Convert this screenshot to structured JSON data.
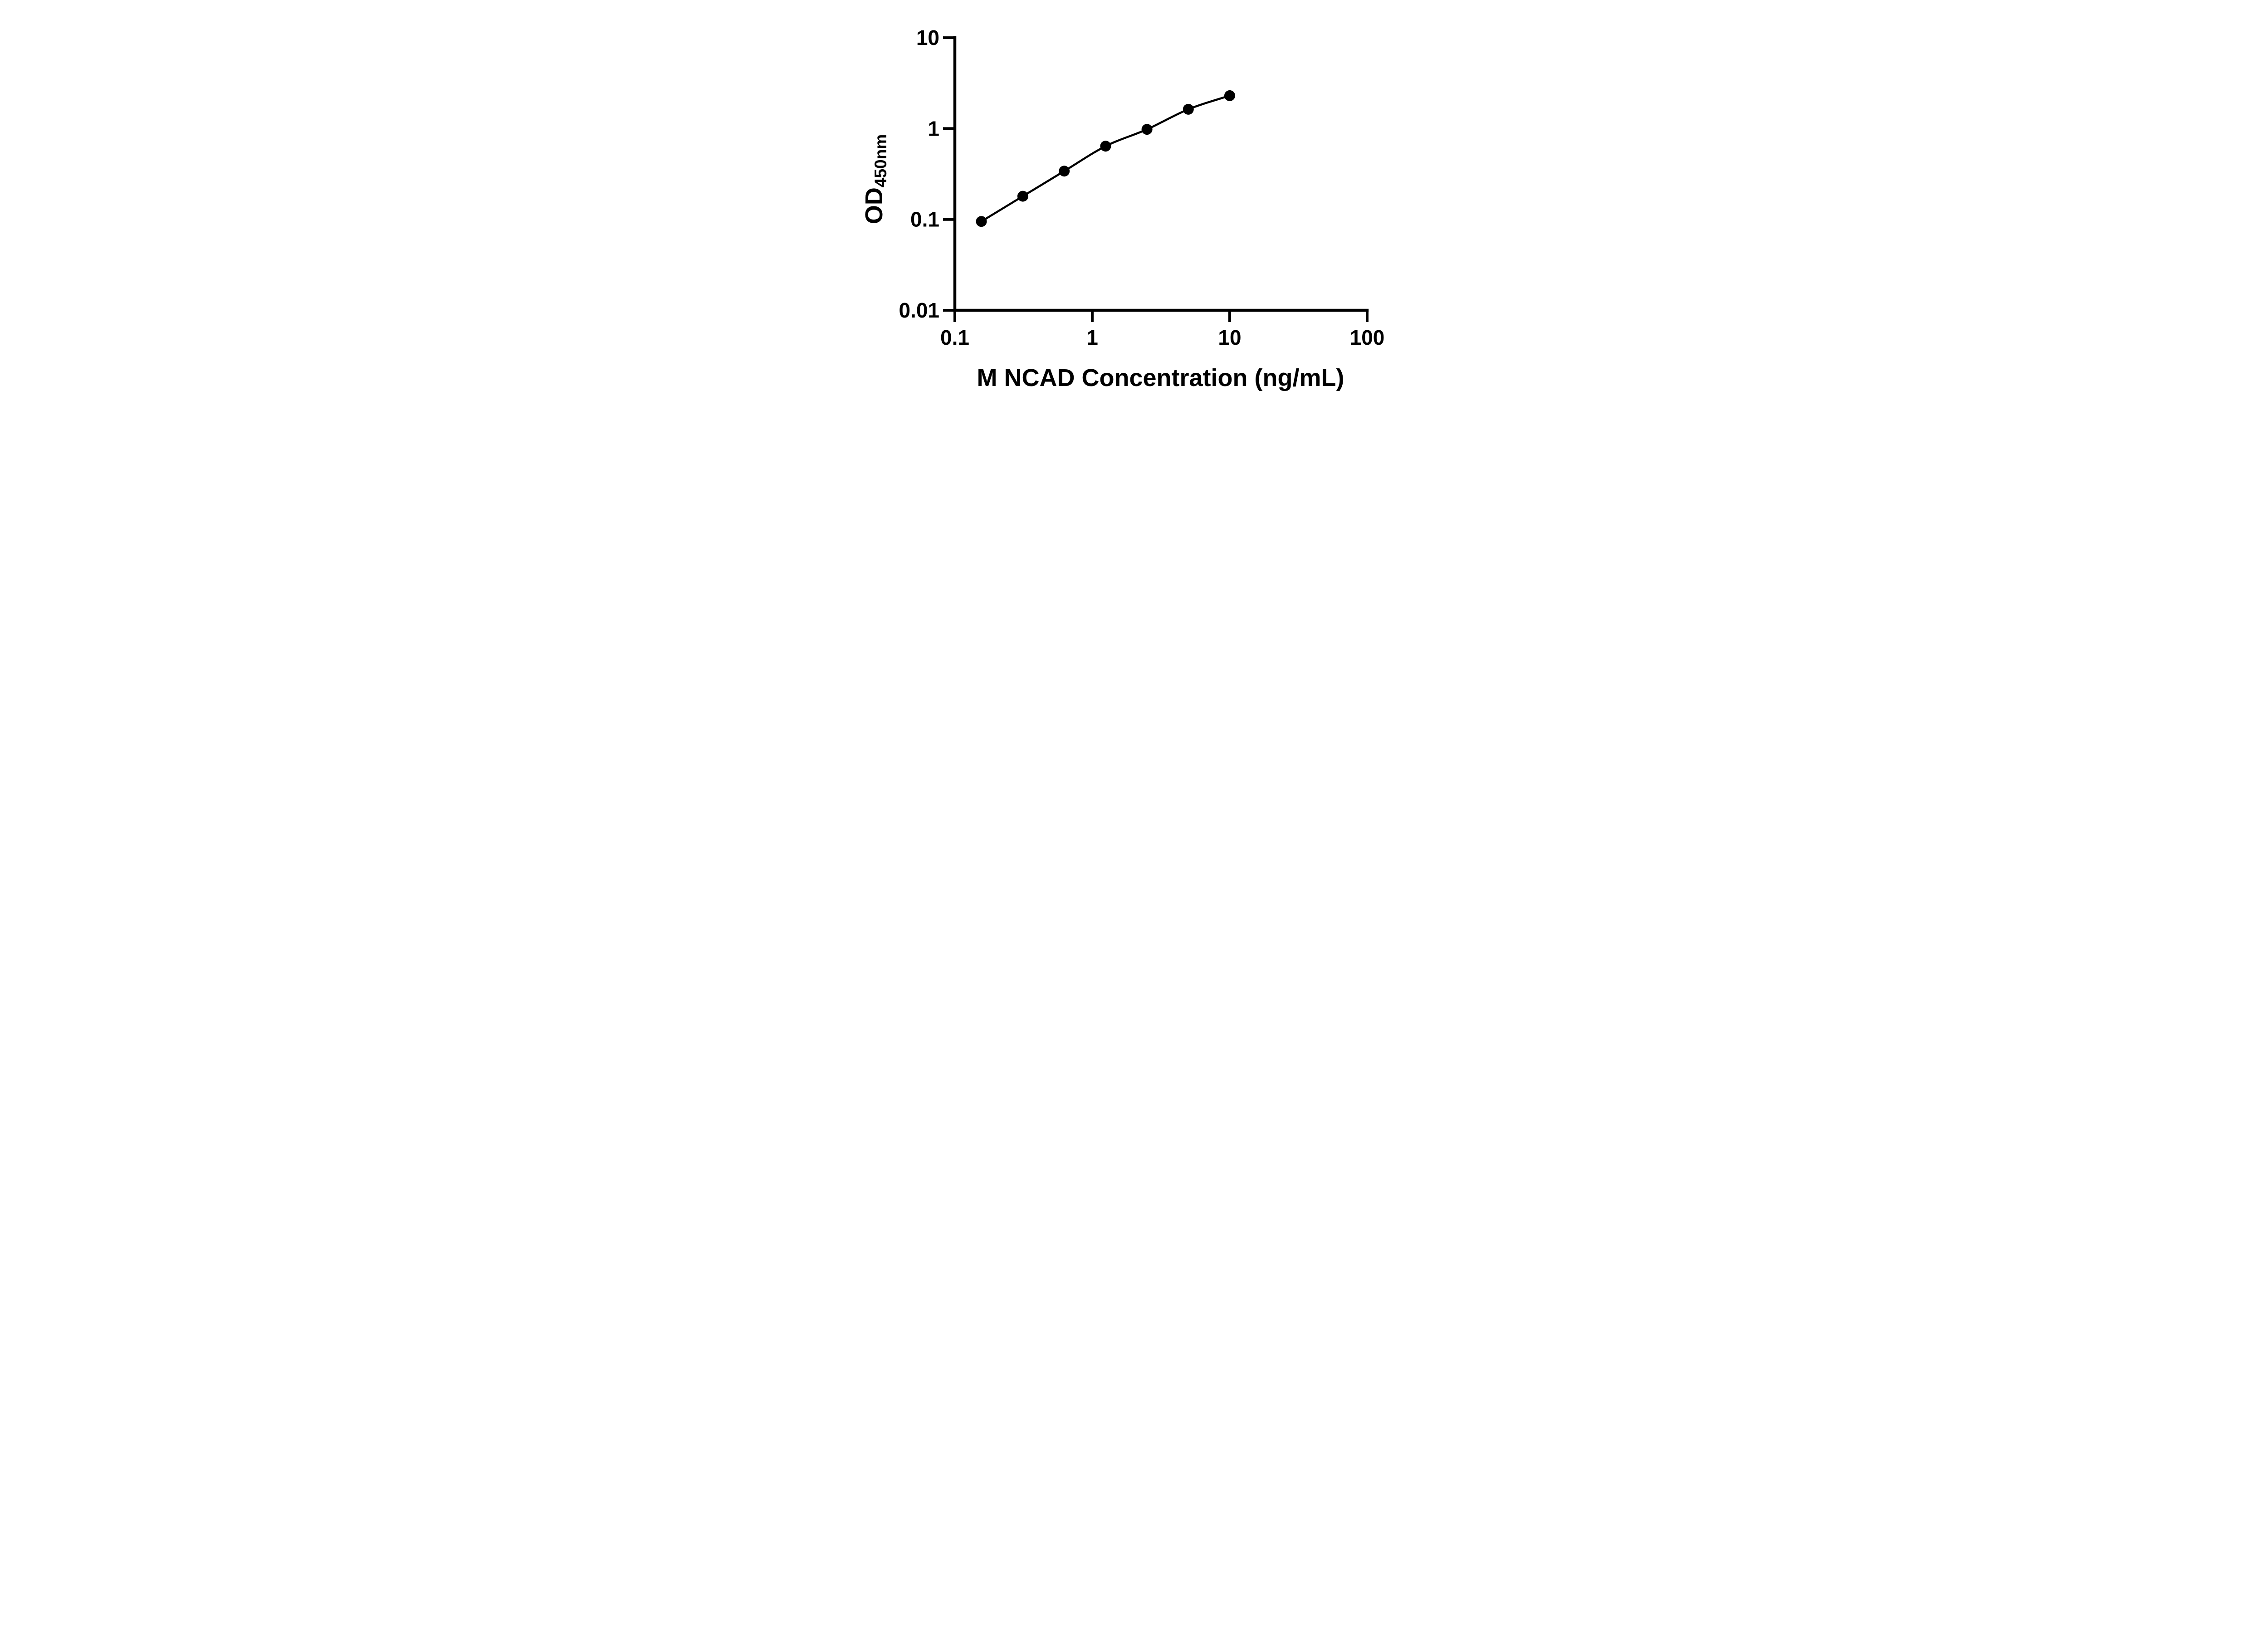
{
  "chart_data": {
    "type": "scatter",
    "title": "",
    "xlabel": "M NCAD Concentration (ng/mL)",
    "ylabel_main": "OD",
    "ylabel_sub": "450nm",
    "x_scale": "log",
    "y_scale": "log",
    "xlim": [
      0.1,
      100
    ],
    "ylim": [
      0.01,
      10
    ],
    "x_ticks": [
      0.1,
      1,
      10,
      100
    ],
    "x_tick_labels": [
      "0.1",
      "1",
      "10",
      "100"
    ],
    "y_ticks": [
      0.01,
      0.1,
      1,
      10
    ],
    "y_tick_labels": [
      "0.01",
      "0.1",
      "1",
      "10"
    ],
    "grid": false,
    "legend": false,
    "series": [
      {
        "x": [
          0.156,
          0.3125,
          0.625,
          1.25,
          2.5,
          5,
          10
        ],
        "y": [
          0.095,
          0.18,
          0.34,
          0.64,
          0.98,
          1.63,
          2.3
        ],
        "marker": "circle",
        "line": "smooth",
        "color": "#000000"
      }
    ],
    "colors": {
      "foreground": "#000000",
      "background": "#ffffff"
    }
  }
}
